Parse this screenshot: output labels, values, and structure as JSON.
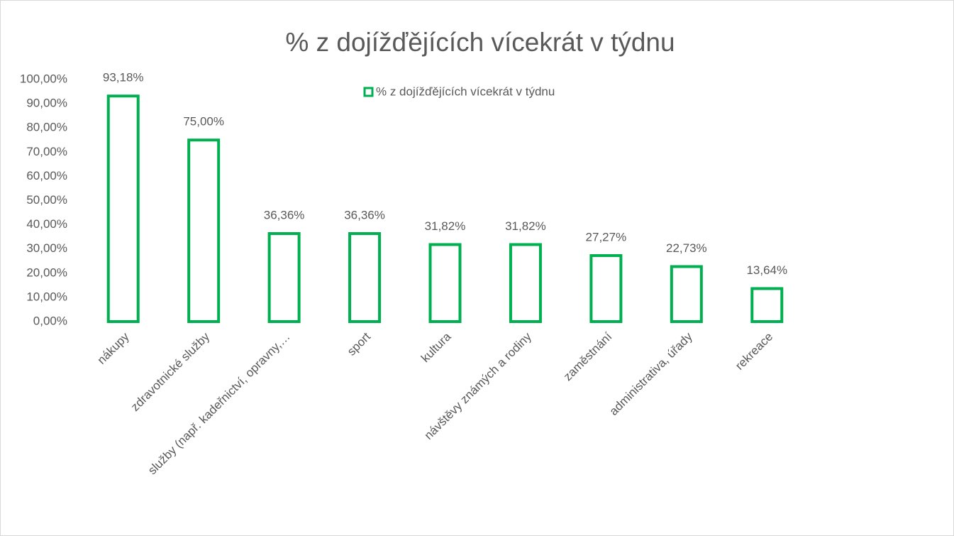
{
  "chart_data": {
    "type": "bar",
    "title": "% z dojížďějících vícekrát v týdnu",
    "categories": [
      "nákupy",
      "zdravotnické služby",
      "služby (např. kadeřnictví, opravny,…",
      "sport",
      "kultura",
      "návštěvy známých a rodiny",
      "zaměstnání",
      "administrativa, úřady",
      "rekreace"
    ],
    "series": [
      {
        "name": "% z dojížďějících vícekrát v týdnu",
        "color": "#00b050",
        "values": [
          93.18,
          75.0,
          36.36,
          36.36,
          31.82,
          31.82,
          27.27,
          22.73,
          13.64
        ],
        "value_labels": [
          "93,18%",
          "75,00%",
          "36,36%",
          "36,36%",
          "31,82%",
          "31,82%",
          "27,27%",
          "22,73%",
          "13,64%"
        ]
      }
    ],
    "ylim": [
      0,
      100
    ],
    "yticks": [
      {
        "value": 0,
        "label": "0,00%"
      },
      {
        "value": 10,
        "label": "10,00%"
      },
      {
        "value": 20,
        "label": "20,00%"
      },
      {
        "value": 30,
        "label": "30,00%"
      },
      {
        "value": 40,
        "label": "40,00%"
      },
      {
        "value": 50,
        "label": "50,00%"
      },
      {
        "value": 60,
        "label": "60,00%"
      },
      {
        "value": 70,
        "label": "70,00%"
      },
      {
        "value": 80,
        "label": "80,00%"
      },
      {
        "value": 90,
        "label": "90,00%"
      },
      {
        "value": 100,
        "label": "100,00%"
      }
    ],
    "grid": false,
    "legend": "top"
  }
}
